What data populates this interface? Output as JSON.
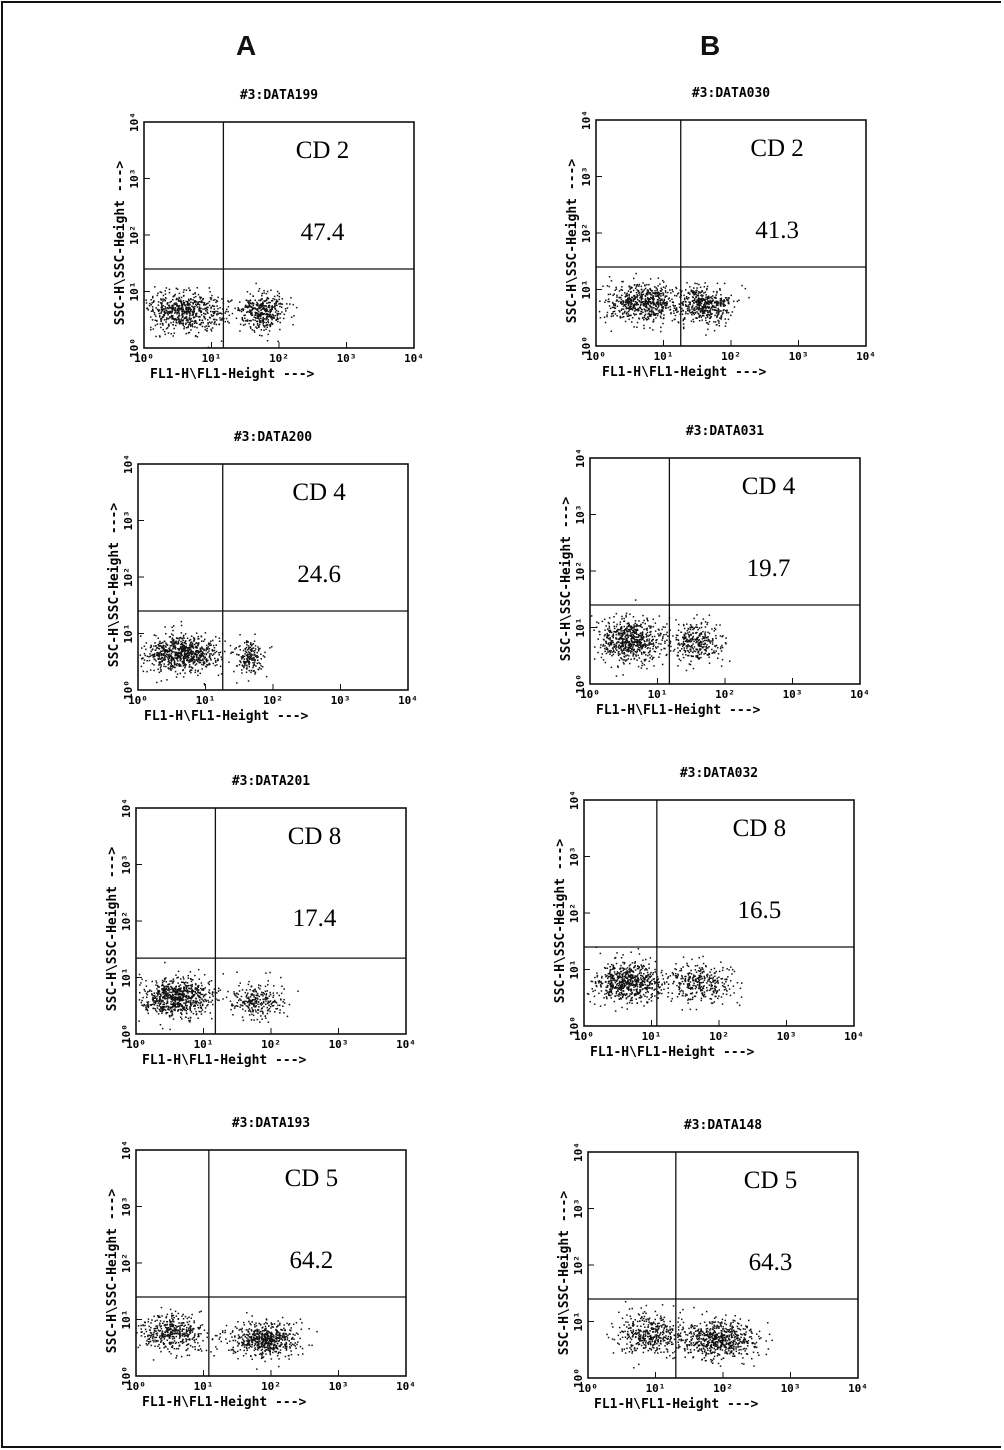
{
  "columns": [
    "A",
    "B"
  ],
  "axis_labels": {
    "x": "FL1-H\\FL1-Height --->",
    "y": "SSC-H\\SSC-Height --->"
  },
  "chart_data": [
    {
      "type": "scatter",
      "column": "A",
      "title": "#3:DATA199",
      "marker": "CD 2",
      "percent": "47.4",
      "xlabel": "FL1-H\\FL1-Height --->",
      "ylabel": "SSC-H\\SSC-Height --->",
      "x_scale": "log",
      "y_scale": "log",
      "xlim": [
        1,
        10000
      ],
      "ylim": [
        1,
        10000
      ],
      "x_ticks": [
        "10⁰",
        "10¹",
        "10²",
        "10³",
        "10⁴"
      ],
      "y_ticks": [
        "10⁰",
        "10¹",
        "10²",
        "10³",
        "10⁴"
      ],
      "quadrant": {
        "x": 15,
        "y": 25
      },
      "clusters": [
        {
          "cx": 4,
          "cy": 4.5,
          "sx": 0.3,
          "sy": 0.17,
          "n": 650
        },
        {
          "cx": 55,
          "cy": 4.5,
          "sx": 0.17,
          "sy": 0.16,
          "n": 380
        }
      ]
    },
    {
      "type": "scatter",
      "column": "B",
      "title": "#3:DATA030",
      "marker": "CD 2",
      "percent": "41.3",
      "xlabel": "FL1-H\\FL1-Height --->",
      "ylabel": "SSC-H\\SSC-Height --->",
      "x_scale": "log",
      "y_scale": "log",
      "xlim": [
        1,
        10000
      ],
      "ylim": [
        1,
        10000
      ],
      "x_ticks": [
        "10⁰",
        "10¹",
        "10²",
        "10³",
        "10⁴"
      ],
      "y_ticks": [
        "10⁰",
        "10¹",
        "10²",
        "10³",
        "10⁴"
      ],
      "quadrant": {
        "x": 18,
        "y": 25
      },
      "clusters": [
        {
          "cx": 5,
          "cy": 6,
          "sx": 0.27,
          "sy": 0.18,
          "n": 650
        },
        {
          "cx": 40,
          "cy": 5.5,
          "sx": 0.2,
          "sy": 0.16,
          "n": 450
        }
      ]
    },
    {
      "type": "scatter",
      "column": "A",
      "title": "#3:DATA200",
      "marker": "CD 4",
      "percent": "24.6",
      "xlabel": "FL1-H\\FL1-Height --->",
      "ylabel": "SSC-H\\SSC-Height --->",
      "x_scale": "log",
      "y_scale": "log",
      "xlim": [
        1,
        10000
      ],
      "ylim": [
        1,
        10000
      ],
      "x_ticks": [
        "10⁰",
        "10¹",
        "10²",
        "10³",
        "10⁴"
      ],
      "y_ticks": [
        "10⁰",
        "10¹",
        "10²",
        "10³",
        "10⁴"
      ],
      "quadrant": {
        "x": 18,
        "y": 25
      },
      "clusters": [
        {
          "cx": 4.5,
          "cy": 4.5,
          "sx": 0.28,
          "sy": 0.16,
          "n": 750
        },
        {
          "cx": 45,
          "cy": 4,
          "sx": 0.1,
          "sy": 0.15,
          "n": 180
        }
      ]
    },
    {
      "type": "scatter",
      "column": "B",
      "title": "#3:DATA031",
      "marker": "CD 4",
      "percent": "19.7",
      "xlabel": "FL1-H\\FL1-Height --->",
      "ylabel": "SSC-H\\SSC-Height --->",
      "x_scale": "log",
      "y_scale": "log",
      "xlim": [
        1,
        10000
      ],
      "ylim": [
        1,
        10000
      ],
      "x_ticks": [
        "10⁰",
        "10¹",
        "10²",
        "10³",
        "10⁴"
      ],
      "y_ticks": [
        "10⁰",
        "10¹",
        "10²",
        "10³",
        "10⁴"
      ],
      "quadrant": {
        "x": 15,
        "y": 25
      },
      "clusters": [
        {
          "cx": 4,
          "cy": 6,
          "sx": 0.25,
          "sy": 0.2,
          "n": 650
        },
        {
          "cx": 35,
          "cy": 5.5,
          "sx": 0.2,
          "sy": 0.18,
          "n": 320
        }
      ]
    },
    {
      "type": "scatter",
      "column": "A",
      "title": "#3:DATA201",
      "marker": "CD 8",
      "percent": "17.4",
      "xlabel": "FL1-H\\FL1-Height --->",
      "ylabel": "SSC-H\\SSC-Height --->",
      "x_scale": "log",
      "y_scale": "log",
      "xlim": [
        1,
        10000
      ],
      "ylim": [
        1,
        10000
      ],
      "x_ticks": [
        "10⁰",
        "10¹",
        "10²",
        "10³",
        "10⁴"
      ],
      "y_ticks": [
        "10⁰",
        "10¹",
        "10²",
        "10³",
        "10⁴"
      ],
      "quadrant": {
        "x": 15,
        "y": 22
      },
      "clusters": [
        {
          "cx": 4,
          "cy": 4.5,
          "sx": 0.25,
          "sy": 0.17,
          "n": 750
        },
        {
          "cx": 60,
          "cy": 4,
          "sx": 0.2,
          "sy": 0.15,
          "n": 260
        }
      ]
    },
    {
      "type": "scatter",
      "column": "B",
      "title": "#3:DATA032",
      "marker": "CD 8",
      "percent": "16.5",
      "xlabel": "FL1-H\\FL1-Height --->",
      "ylabel": "SSC-H\\SSC-Height --->",
      "x_scale": "log",
      "y_scale": "log",
      "xlim": [
        1,
        10000
      ],
      "ylim": [
        1,
        10000
      ],
      "x_ticks": [
        "10⁰",
        "10¹",
        "10²",
        "10³",
        "10⁴"
      ],
      "y_ticks": [
        "10⁰",
        "10¹",
        "10²",
        "10³",
        "10⁴"
      ],
      "quadrant": {
        "x": 12,
        "y": 25
      },
      "clusters": [
        {
          "cx": 4.5,
          "cy": 6,
          "sx": 0.25,
          "sy": 0.18,
          "n": 650
        },
        {
          "cx": 50,
          "cy": 6,
          "sx": 0.25,
          "sy": 0.17,
          "n": 330
        }
      ]
    },
    {
      "type": "scatter",
      "column": "A",
      "title": "#3:DATA193",
      "marker": "CD 5",
      "percent": "64.2",
      "xlabel": "FL1-H\\FL1-Height --->",
      "ylabel": "SSC-H\\SSC-Height --->",
      "x_scale": "log",
      "y_scale": "log",
      "xlim": [
        1,
        10000
      ],
      "ylim": [
        1,
        10000
      ],
      "x_ticks": [
        "10⁰",
        "10¹",
        "10²",
        "10³",
        "10⁴"
      ],
      "y_ticks": [
        "10⁰",
        "10¹",
        "10²",
        "10³",
        "10⁴"
      ],
      "quadrant": {
        "x": 12,
        "y": 25
      },
      "clusters": [
        {
          "cx": 3.5,
          "cy": 6,
          "sx": 0.25,
          "sy": 0.16,
          "n": 420
        },
        {
          "cx": 80,
          "cy": 4.5,
          "sx": 0.25,
          "sy": 0.15,
          "n": 620
        }
      ]
    },
    {
      "type": "scatter",
      "column": "B",
      "title": "#3:DATA148",
      "marker": "CD 5",
      "percent": "64.3",
      "xlabel": "FL1-H\\FL1-Height --->",
      "ylabel": "SSC-H\\SSC-Height --->",
      "x_scale": "log",
      "y_scale": "log",
      "xlim": [
        1,
        10000
      ],
      "ylim": [
        1,
        10000
      ],
      "x_ticks": [
        "10⁰",
        "10¹",
        "10²",
        "10³",
        "10⁴"
      ],
      "y_ticks": [
        "10⁰",
        "10¹",
        "10²",
        "10³",
        "10⁴"
      ],
      "quadrant": {
        "x": 20,
        "y": 25
      },
      "clusters": [
        {
          "cx": 8,
          "cy": 6,
          "sx": 0.25,
          "sy": 0.17,
          "n": 400
        },
        {
          "cx": 80,
          "cy": 5,
          "sx": 0.28,
          "sy": 0.17,
          "n": 650
        }
      ]
    }
  ]
}
